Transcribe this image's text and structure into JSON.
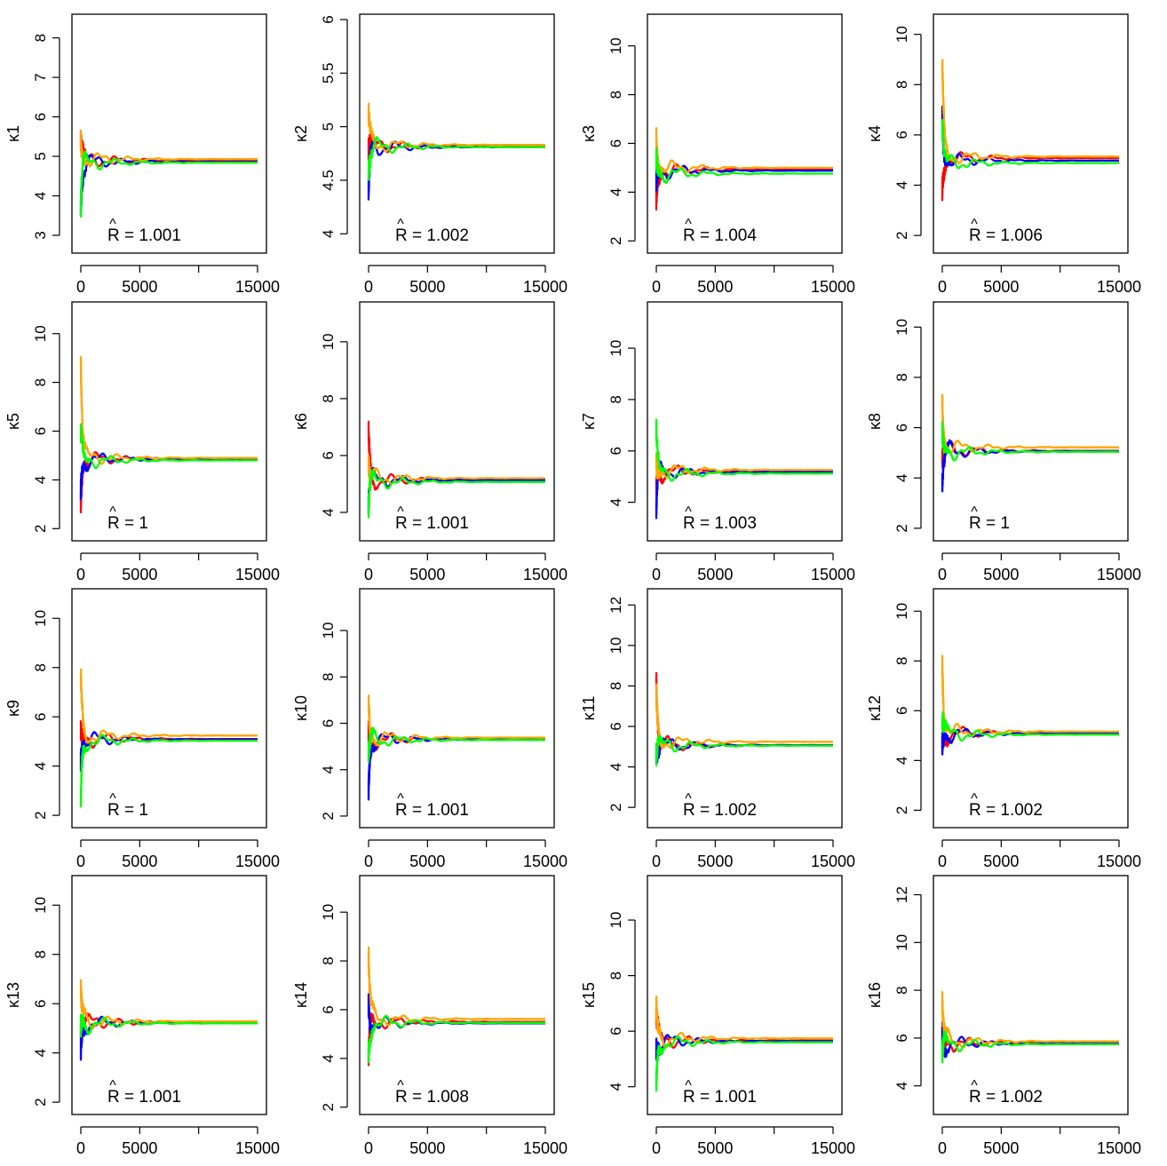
{
  "chart_data": {
    "type": "line",
    "layout": "4x4 grid of trace plots",
    "xlim": [
      0,
      15000
    ],
    "x_ticks": [
      0,
      5000,
      10000,
      15000
    ],
    "x_tick_labels": [
      "0",
      "5000",
      "",
      "15000"
    ],
    "series_colors": [
      "#ff0000",
      "#0000ff",
      "#ffa500",
      "#00ff00"
    ],
    "panels": [
      {
        "ylabel": "κ1",
        "ylim": [
          2.55,
          8.6
        ],
        "yticks": [
          3,
          4,
          5,
          6,
          7,
          8
        ],
        "rhat_label": "R = 1.001",
        "series": [
          {
            "color": "#ff0000",
            "start": 5.3,
            "final": 4.9
          },
          {
            "color": "#0000ff",
            "start": 3.8,
            "final": 4.86
          },
          {
            "color": "#ffa500",
            "start": 5.6,
            "final": 4.93
          },
          {
            "color": "#00ff00",
            "start": 3.7,
            "final": 4.84
          }
        ]
      },
      {
        "ylabel": "κ2",
        "ylim": [
          3.82,
          6.05
        ],
        "yticks": [
          4.0,
          4.5,
          5.0,
          5.5,
          6.0
        ],
        "rhat_label": "R = 1.002",
        "series": [
          {
            "color": "#ff0000",
            "start": 4.8,
            "final": 4.82
          },
          {
            "color": "#0000ff",
            "start": 4.35,
            "final": 4.81
          },
          {
            "color": "#ffa500",
            "start": 5.05,
            "final": 4.83
          },
          {
            "color": "#00ff00",
            "start": 4.6,
            "final": 4.81
          }
        ]
      },
      {
        "ylabel": "κ3",
        "ylim": [
          1.5,
          11.3
        ],
        "yticks": [
          2,
          4,
          6,
          8,
          10
        ],
        "rhat_label": "R = 1.004",
        "series": [
          {
            "color": "#ff0000",
            "start": 3.5,
            "final": 4.93
          },
          {
            "color": "#0000ff",
            "start": 4.2,
            "final": 4.88
          },
          {
            "color": "#ffa500",
            "start": 6.7,
            "final": 5.0
          },
          {
            "color": "#00ff00",
            "start": 5.5,
            "final": 4.76
          }
        ]
      },
      {
        "ylabel": "κ4",
        "ylim": [
          1.3,
          10.8
        ],
        "yticks": [
          2,
          4,
          6,
          8,
          10
        ],
        "rhat_label": "R = 1.006",
        "series": [
          {
            "color": "#ff0000",
            "start": 3.8,
            "final": 5.08
          },
          {
            "color": "#0000ff",
            "start": 7.2,
            "final": 4.98
          },
          {
            "color": "#ffa500",
            "start": 8.7,
            "final": 5.14
          },
          {
            "color": "#00ff00",
            "start": 6.2,
            "final": 4.88
          }
        ]
      },
      {
        "ylabel": "κ5",
        "ylim": [
          1.5,
          11.3
        ],
        "yticks": [
          2,
          4,
          6,
          8,
          10
        ],
        "rhat_label": "R = 1",
        "series": [
          {
            "color": "#ff0000",
            "start": 3.4,
            "final": 4.86
          },
          {
            "color": "#0000ff",
            "start": 3.6,
            "final": 4.85
          },
          {
            "color": "#ffa500",
            "start": 9.1,
            "final": 4.9
          },
          {
            "color": "#00ff00",
            "start": 5.5,
            "final": 4.8
          }
        ]
      },
      {
        "ylabel": "κ6",
        "ylim": [
          3.0,
          11.4
        ],
        "yticks": [
          4,
          6,
          8,
          10
        ],
        "rhat_label": "R = 1.001",
        "series": [
          {
            "color": "#ff0000",
            "start": 6.6,
            "final": 5.14
          },
          {
            "color": "#0000ff",
            "start": 4.3,
            "final": 5.14
          },
          {
            "color": "#ffa500",
            "start": 5.7,
            "final": 5.2
          },
          {
            "color": "#00ff00",
            "start": 4.2,
            "final": 5.07
          }
        ]
      },
      {
        "ylabel": "κ7",
        "ylim": [
          2.5,
          11.8
        ],
        "yticks": [
          4,
          6,
          8,
          10
        ],
        "rhat_label": "R = 1.003",
        "series": [
          {
            "color": "#ff0000",
            "start": 4.5,
            "final": 5.2
          },
          {
            "color": "#0000ff",
            "start": 3.6,
            "final": 5.18
          },
          {
            "color": "#ffa500",
            "start": 5.5,
            "final": 5.26
          },
          {
            "color": "#00ff00",
            "start": 6.4,
            "final": 5.12
          }
        ]
      },
      {
        "ylabel": "κ8",
        "ylim": [
          1.5,
          11.0
        ],
        "yticks": [
          2,
          4,
          6,
          8,
          10
        ],
        "rhat_label": "R = 1",
        "series": [
          {
            "color": "#ff0000",
            "start": 4.6,
            "final": 5.08
          },
          {
            "color": "#0000ff",
            "start": 3.7,
            "final": 5.06
          },
          {
            "color": "#ffa500",
            "start": 7.4,
            "final": 5.22
          },
          {
            "color": "#00ff00",
            "start": 5.6,
            "final": 5.04
          }
        ]
      },
      {
        "ylabel": "κ9",
        "ylim": [
          1.5,
          11.2
        ],
        "yticks": [
          2,
          4,
          6,
          8,
          10
        ],
        "rhat_label": "R = 1",
        "series": [
          {
            "color": "#ff0000",
            "start": 5.2,
            "final": 5.1
          },
          {
            "color": "#0000ff",
            "start": 4.5,
            "final": 5.08
          },
          {
            "color": "#ffa500",
            "start": 7.4,
            "final": 5.24
          },
          {
            "color": "#00ff00",
            "start": 2.3,
            "final": 5.03
          }
        ]
      },
      {
        "ylabel": "κ10",
        "ylim": [
          1.5,
          11.8
        ],
        "yticks": [
          2,
          4,
          6,
          8,
          10
        ],
        "rhat_label": "R = 1.001",
        "series": [
          {
            "color": "#ff0000",
            "start": 5.5,
            "final": 5.32
          },
          {
            "color": "#0000ff",
            "start": 3.3,
            "final": 5.31
          },
          {
            "color": "#ffa500",
            "start": 7.3,
            "final": 5.38
          },
          {
            "color": "#00ff00",
            "start": 4.6,
            "final": 5.28
          }
        ]
      },
      {
        "ylabel": "κ11",
        "ylim": [
          1.0,
          12.8
        ],
        "yticks": [
          2,
          4,
          6,
          8,
          10,
          12
        ],
        "rhat_label": "R = 1.002",
        "series": [
          {
            "color": "#ff0000",
            "start": 8.4,
            "final": 5.08
          },
          {
            "color": "#0000ff",
            "start": 5.2,
            "final": 5.07
          },
          {
            "color": "#ffa500",
            "start": 7.0,
            "final": 5.24
          },
          {
            "color": "#00ff00",
            "start": 4.5,
            "final": 5.05
          }
        ]
      },
      {
        "ylabel": "κ12",
        "ylim": [
          1.3,
          10.9
        ],
        "yticks": [
          2,
          4,
          6,
          8,
          10
        ],
        "rhat_label": "R = 1.002",
        "series": [
          {
            "color": "#ff0000",
            "start": 4.6,
            "final": 5.1
          },
          {
            "color": "#0000ff",
            "start": 4.8,
            "final": 5.08
          },
          {
            "color": "#ffa500",
            "start": 8.4,
            "final": 5.16
          },
          {
            "color": "#00ff00",
            "start": 5.8,
            "final": 5.04
          }
        ]
      },
      {
        "ylabel": "κ13",
        "ylim": [
          1.5,
          11.2
        ],
        "yticks": [
          2,
          4,
          6,
          8,
          10
        ],
        "rhat_label": "R = 1.001",
        "series": [
          {
            "color": "#ff0000",
            "start": 5.2,
            "final": 5.24
          },
          {
            "color": "#0000ff",
            "start": 3.9,
            "final": 5.22
          },
          {
            "color": "#ffa500",
            "start": 6.4,
            "final": 5.28
          },
          {
            "color": "#00ff00",
            "start": 5.0,
            "final": 5.2
          }
        ]
      },
      {
        "ylabel": "κ14",
        "ylim": [
          1.7,
          11.5
        ],
        "yticks": [
          2,
          4,
          6,
          8,
          10
        ],
        "rhat_label": "R = 1.008",
        "series": [
          {
            "color": "#ff0000",
            "start": 3.6,
            "final": 5.5
          },
          {
            "color": "#0000ff",
            "start": 6.5,
            "final": 5.44
          },
          {
            "color": "#ffa500",
            "start": 8.2,
            "final": 5.62
          },
          {
            "color": "#00ff00",
            "start": 4.5,
            "final": 5.46
          }
        ]
      },
      {
        "ylabel": "κ15",
        "ylim": [
          3.0,
          11.6
        ],
        "yticks": [
          4,
          6,
          8,
          10
        ],
        "rhat_label": "R = 1.001",
        "series": [
          {
            "color": "#ff0000",
            "start": 6.3,
            "final": 5.66
          },
          {
            "color": "#0000ff",
            "start": 5.5,
            "final": 5.64
          },
          {
            "color": "#ffa500",
            "start": 6.8,
            "final": 5.74
          },
          {
            "color": "#00ff00",
            "start": 3.8,
            "final": 5.6
          }
        ]
      },
      {
        "ylabel": "κ16",
        "ylim": [
          2.8,
          12.8
        ],
        "yticks": [
          4,
          6,
          8,
          10,
          12
        ],
        "rhat_label": "R = 1.002",
        "series": [
          {
            "color": "#ff0000",
            "start": 5.8,
            "final": 5.8
          },
          {
            "color": "#0000ff",
            "start": 6.3,
            "final": 5.78
          },
          {
            "color": "#ffa500",
            "start": 7.5,
            "final": 5.86
          },
          {
            "color": "#00ff00",
            "start": 5.0,
            "final": 5.74
          }
        ]
      }
    ]
  }
}
